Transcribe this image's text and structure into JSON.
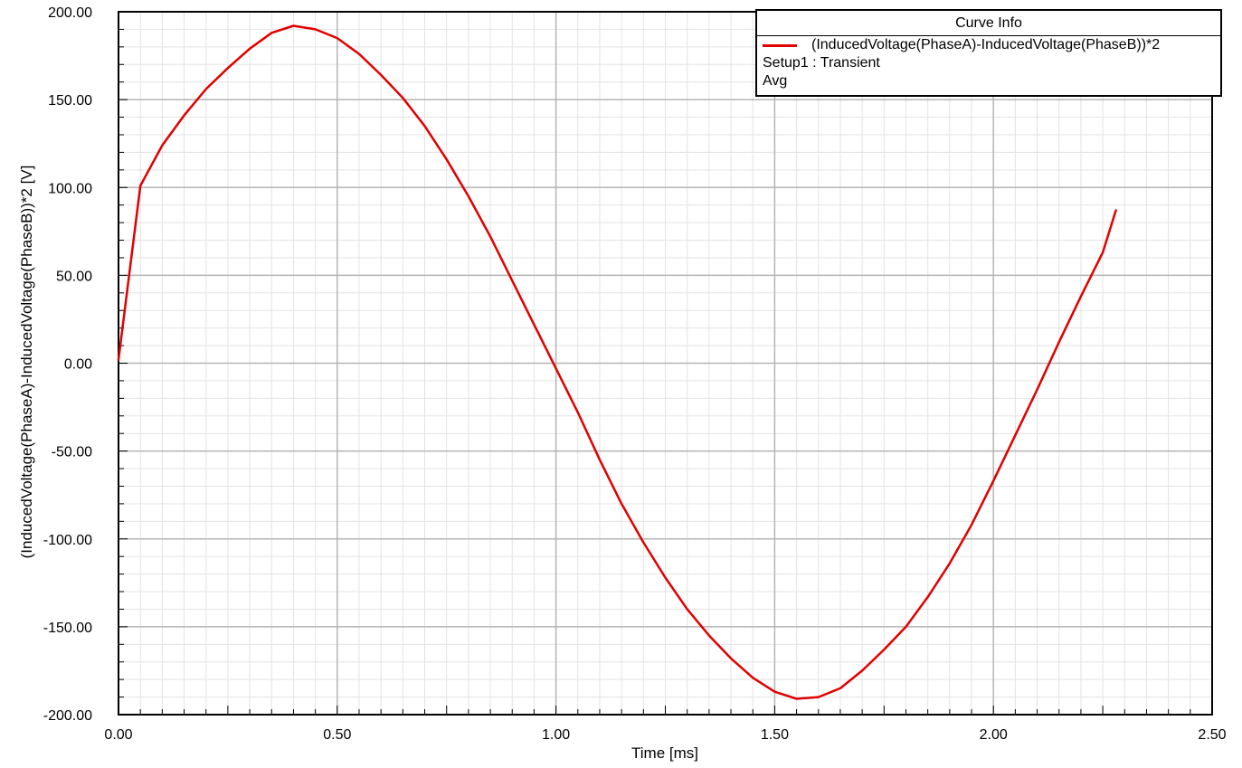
{
  "chart_data": {
    "type": "line",
    "title": "",
    "xlabel": "Time [ms]",
    "ylabel": "(InducedVoltage(PhaseA)-InducedVoltage(PhaseB))*2 [V]",
    "xlim": [
      0,
      2.5
    ],
    "ylim": [
      -200,
      200
    ],
    "xticks": [
      "0.00",
      "0.50",
      "1.00",
      "1.50",
      "2.00",
      "2.50"
    ],
    "yticks": [
      "200.00",
      "150.00",
      "100.00",
      "50.00",
      "0.00",
      "-50.00",
      "-100.00",
      "-150.00",
      "-200.00"
    ],
    "grid": true,
    "legend_placement": "top-right",
    "series": [
      {
        "name": "(InducedVoltage(PhaseA)-InducedVoltage(PhaseB))*2",
        "color": "#e00000",
        "x": [
          0,
          0.05,
          0.1,
          0.15,
          0.2,
          0.25,
          0.3,
          0.35,
          0.4,
          0.45,
          0.5,
          0.55,
          0.6,
          0.65,
          0.7,
          0.75,
          0.8,
          0.85,
          0.9,
          0.95,
          1.0,
          1.05,
          1.1,
          1.15,
          1.2,
          1.25,
          1.3,
          1.35,
          1.4,
          1.45,
          1.5,
          1.55,
          1.6,
          1.65,
          1.7,
          1.75,
          1.8,
          1.85,
          1.9,
          1.95,
          2.0,
          2.05,
          2.1,
          2.15,
          2.2,
          2.25,
          2.28
        ],
        "y": [
          2,
          101,
          124,
          141,
          156,
          168,
          179,
          188,
          192,
          190,
          185,
          176,
          164,
          151,
          135,
          116,
          95,
          72,
          47,
          22,
          -3,
          -28,
          -55,
          -80,
          -102,
          -122,
          -140,
          -155,
          -168,
          -179,
          -187,
          -191,
          -190,
          -185,
          -175,
          -163,
          -150,
          -133,
          -114,
          -92,
          -67,
          -41,
          -15,
          12,
          38,
          63,
          87
        ]
      }
    ]
  },
  "legend": {
    "header": "Curve Info",
    "entry_name": "(InducedVoltage(PhaseA)-InducedVoltage(PhaseB))*2",
    "setup": "Setup1 : Transient",
    "stat": "Avg",
    "color": "#e00000"
  }
}
